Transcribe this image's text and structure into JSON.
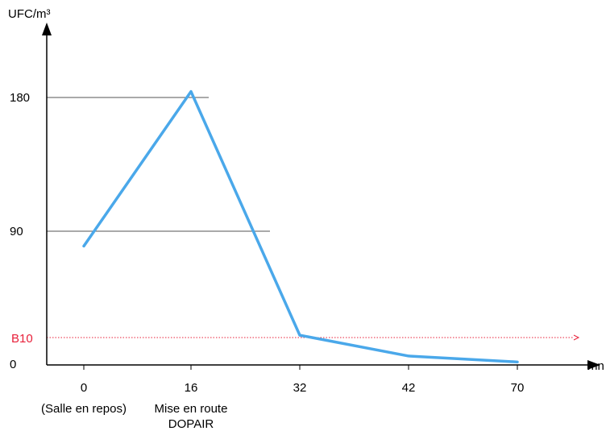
{
  "chart_data": {
    "type": "line",
    "ylabel": "UFC/m³",
    "xlabel": "mn",
    "x_categories": [
      "0",
      "16",
      "32",
      "42",
      "70"
    ],
    "x_sublabels": [
      [
        "(Salle en repos)"
      ],
      [
        "Mise en route",
        "DOPAIR"
      ],
      [],
      [],
      []
    ],
    "y_ticks": [
      0,
      90,
      180
    ],
    "y_tick_labels": [
      "0",
      "90",
      "180"
    ],
    "ylim": [
      0,
      200
    ],
    "reference_line": {
      "label": "B10",
      "value": 16,
      "style": "dotted",
      "color": "#e8203a"
    },
    "horizontal_gridlines": [
      {
        "value": 90,
        "through_category": "16"
      },
      {
        "value": 180,
        "through_category": "0"
      }
    ],
    "series": [
      {
        "color": "#4aa8ea",
        "values": [
          80,
          184,
          20,
          6,
          2
        ]
      }
    ],
    "grid": false,
    "legend": "none"
  }
}
